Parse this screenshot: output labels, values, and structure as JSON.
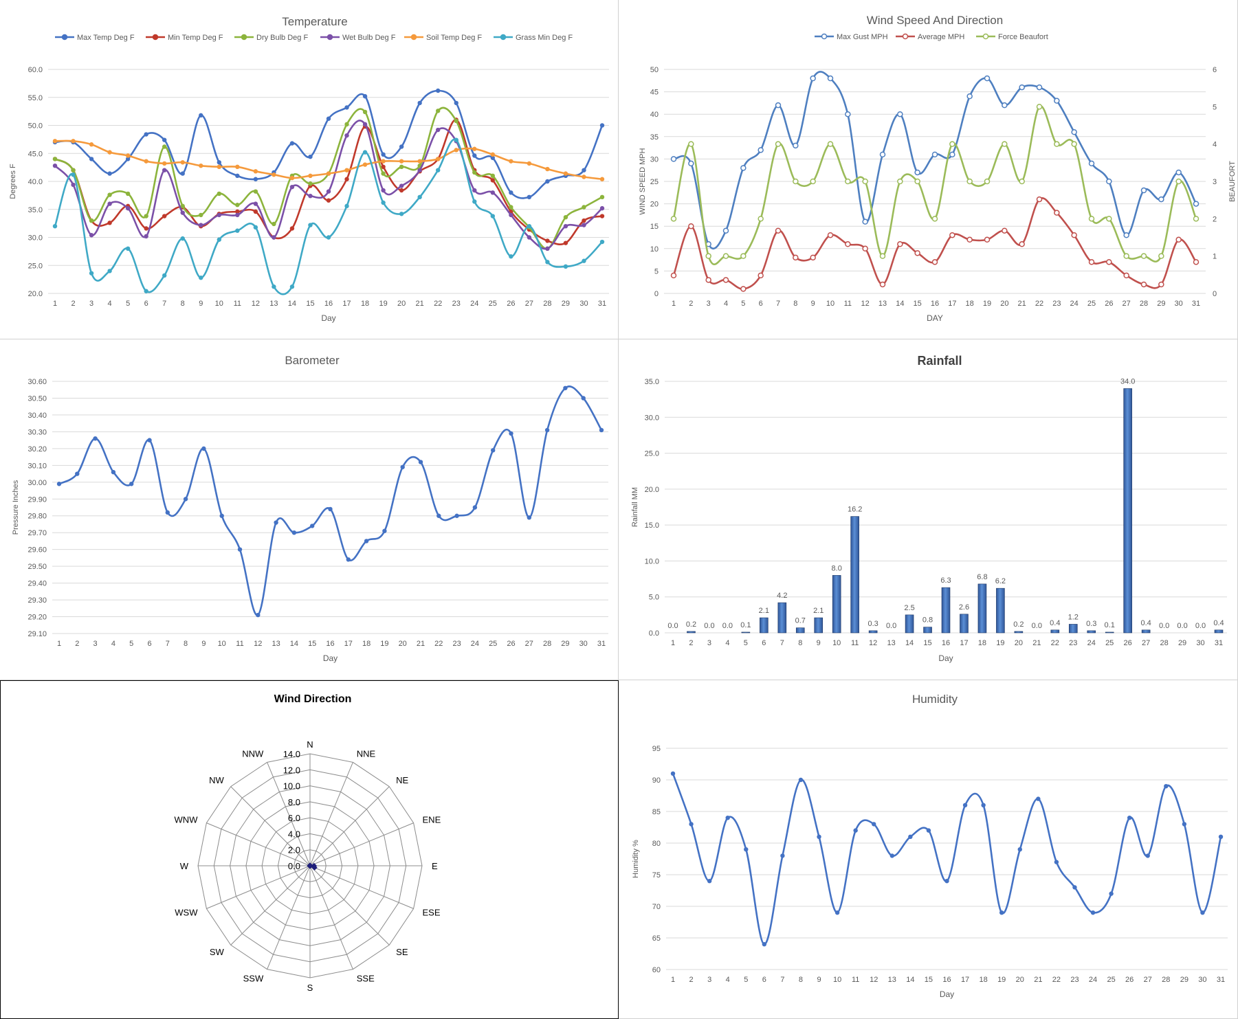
{
  "days": [
    "1",
    "2",
    "3",
    "4",
    "5",
    "6",
    "7",
    "8",
    "9",
    "10",
    "11",
    "12",
    "13",
    "14",
    "15",
    "16",
    "17",
    "18",
    "19",
    "20",
    "21",
    "22",
    "23",
    "24",
    "25",
    "26",
    "27",
    "28",
    "29",
    "30",
    "31"
  ],
  "chart_data": [
    {
      "id": "temperature",
      "type": "line",
      "title": "Temperature",
      "xlabel": "Day",
      "ylabel": "Degrees F",
      "ylim": [
        20,
        60
      ],
      "yticks": [
        "20.0",
        "25.0",
        "30.0",
        "35.0",
        "40.0",
        "45.0",
        "50.0",
        "55.0",
        "60.0"
      ],
      "grid": true,
      "legend": "top",
      "series": [
        {
          "name": "Max Temp Deg F",
          "color": "#4472c4",
          "values": [
            47,
            47,
            44,
            41.4,
            44,
            48.4,
            47.4,
            41.4,
            51.8,
            43.4,
            41,
            40.4,
            41.6,
            46.8,
            44.4,
            51.2,
            53.2,
            55.2,
            44.8,
            46.2,
            54,
            56.2,
            54,
            44.6,
            44.2,
            38,
            37.2,
            40,
            41,
            42,
            50
          ]
        },
        {
          "name": "Min Temp Deg F",
          "color": "#c0392b",
          "values": [
            44,
            42,
            33,
            32.6,
            35.6,
            31.6,
            33.8,
            35.4,
            32,
            34.2,
            34.6,
            34.6,
            30,
            31.6,
            39.2,
            36.6,
            40.4,
            49.8,
            42.6,
            38.4,
            41.8,
            44,
            51,
            42,
            40.2,
            34.6,
            31.4,
            29.4,
            29,
            33,
            33.8
          ]
        },
        {
          "name": "Dry Bulb Deg F",
          "color": "#8cb43c",
          "values": [
            44,
            42,
            33,
            37.6,
            37.8,
            33.8,
            46.2,
            35.6,
            34,
            37.8,
            35.8,
            38.2,
            32.4,
            41,
            39.6,
            41.4,
            50.2,
            52.4,
            41.4,
            42.6,
            42.8,
            52.6,
            50.8,
            41.6,
            41,
            35.4,
            31.8,
            28,
            33.6,
            35.4,
            37.2
          ]
        },
        {
          "name": "Wet Bulb Deg F",
          "color": "#7b50a8",
          "values": [
            42.8,
            39.4,
            30.4,
            36,
            35.2,
            30.2,
            42,
            34.4,
            32.2,
            34,
            34,
            36,
            30,
            39,
            37.4,
            38.2,
            48.2,
            50.2,
            38.4,
            39.2,
            42,
            49.2,
            47.2,
            38.4,
            38,
            34,
            30,
            28,
            32,
            32.2,
            35.2
          ]
        },
        {
          "name": "Soil Temp Deg F",
          "color": "#f59a3c",
          "values": [
            47.2,
            47.2,
            46.6,
            45.2,
            44.6,
            43.6,
            43.2,
            43.4,
            42.8,
            42.6,
            42.6,
            41.8,
            41.2,
            40.6,
            41,
            41.4,
            42,
            43,
            43.6,
            43.6,
            43.6,
            44,
            45.6,
            45.8,
            44.8,
            43.6,
            43.2,
            42.2,
            41.4,
            40.8,
            40.4
          ]
        },
        {
          "name": "Grass Min Deg F",
          "color": "#3fa9c6",
          "values": [
            32,
            41.2,
            23.6,
            24,
            28,
            20.4,
            23.2,
            29.8,
            22.8,
            29.6,
            31.2,
            31.8,
            21.2,
            21.2,
            32.2,
            30,
            35.6,
            45.2,
            36.2,
            34.2,
            37.2,
            42,
            47.4,
            36.4,
            33.8,
            26.6,
            32,
            25.6,
            24.8,
            25.8,
            29.2
          ]
        }
      ]
    },
    {
      "id": "wind",
      "type": "line",
      "title": "Wind Speed And Direction",
      "xlabel": "DAY",
      "ylabel": "WIND SPEED MPH",
      "y2label": "BEAUFORT",
      "ylim": [
        0,
        50
      ],
      "y2lim": [
        0,
        6
      ],
      "yticks": [
        "0",
        "5",
        "10",
        "15",
        "20",
        "25",
        "30",
        "35",
        "40",
        "45",
        "50"
      ],
      "y2ticks": [
        "0",
        "1",
        "2",
        "3",
        "4",
        "5",
        "6"
      ],
      "grid": true,
      "legend": "top",
      "series": [
        {
          "name": "Max Gust MPH",
          "color": "#4e7fc0",
          "axis": "left",
          "values": [
            30,
            29,
            11,
            14,
            28,
            32,
            42,
            33,
            48,
            48,
            40,
            16,
            31,
            40,
            27,
            31,
            31,
            44,
            48,
            42,
            46,
            46,
            43,
            36,
            29,
            25,
            13,
            23,
            21,
            27,
            20
          ]
        },
        {
          "name": "Average MPH",
          "color": "#c0504d",
          "axis": "left",
          "values": [
            4,
            15,
            3,
            3,
            1,
            4,
            14,
            8,
            8,
            13,
            11,
            10,
            2,
            11,
            9,
            7,
            13,
            12,
            12,
            14,
            11,
            21,
            18,
            13,
            7,
            7,
            4,
            2,
            2,
            12,
            7
          ]
        },
        {
          "name": "Force Beaufort",
          "color": "#9bbb59",
          "axis": "right",
          "values": [
            2,
            4,
            1,
            1,
            1,
            2,
            4,
            3,
            3,
            4,
            3,
            3,
            1,
            3,
            3,
            2,
            4,
            3,
            3,
            4,
            3,
            5,
            4,
            4,
            2,
            2,
            1,
            1,
            1,
            3,
            2
          ]
        }
      ]
    },
    {
      "id": "barometer",
      "type": "line",
      "title": "Barometer",
      "xlabel": "Day",
      "ylabel": "Pressure Inches",
      "ylim": [
        29.1,
        30.6
      ],
      "yticks": [
        "29.10",
        "29.20",
        "29.30",
        "29.40",
        "29.50",
        "29.60",
        "29.70",
        "29.80",
        "29.90",
        "30.00",
        "30.10",
        "30.20",
        "30.30",
        "30.40",
        "30.50",
        "30.60"
      ],
      "grid": true,
      "series": [
        {
          "name": "",
          "color": "#4472c4",
          "values": [
            29.99,
            30.05,
            30.26,
            30.06,
            29.99,
            30.25,
            29.82,
            29.9,
            30.2,
            29.8,
            29.6,
            29.21,
            29.76,
            29.7,
            29.74,
            29.84,
            29.54,
            29.65,
            29.71,
            30.09,
            30.12,
            29.8,
            29.8,
            29.85,
            30.19,
            30.29,
            29.79,
            30.31,
            30.56,
            30.5,
            30.31
          ]
        }
      ]
    },
    {
      "id": "rainfall",
      "type": "bar",
      "title": "Rainfall",
      "xlabel": "Day",
      "ylabel": "Rainfall MM",
      "ylim": [
        0,
        35
      ],
      "yticks": [
        "0.0",
        "5.0",
        "10.0",
        "15.0",
        "20.0",
        "25.0",
        "30.0",
        "35.0"
      ],
      "grid": true,
      "series": [
        {
          "name": "",
          "color": "#4472c4",
          "values": [
            0,
            0.2,
            0,
            0,
            0.1,
            2.1,
            4.2,
            0.7,
            2.1,
            8,
            16.2,
            0.3,
            0,
            2.5,
            0.8,
            6.3,
            2.6,
            6.8,
            6.2,
            0.2,
            0,
            0.4,
            1.2,
            0.3,
            0.1,
            34,
            0.4,
            0,
            0,
            0,
            0.4
          ]
        }
      ],
      "data_labels": [
        "0.0",
        "0.2",
        "0.0",
        "0.0",
        "0.1",
        "2.1",
        "4.2",
        "0.7",
        "2.1",
        "8.0",
        "16.2",
        "0.3",
        "0.0",
        "2.5",
        "0.8",
        "6.3",
        "2.6",
        "6.8",
        "6.2",
        "0.2",
        "0.0",
        "0.4",
        "1.2",
        "0.3",
        "0.1",
        "34.0",
        "0.4",
        "0.0",
        "0.0",
        "0.0",
        "0.4"
      ]
    },
    {
      "id": "wind_direction",
      "type": "radar",
      "title": "Wind Direction",
      "directions": [
        "N",
        "NNE",
        "NE",
        "ENE",
        "E",
        "ESE",
        "SE",
        "SSE",
        "S",
        "SSW",
        "SW",
        "WSW",
        "W",
        "WNW",
        "NW",
        "NNW"
      ],
      "rlim": [
        0,
        14
      ],
      "rticks": [
        "0.0",
        "2.0",
        "4.0",
        "6.0",
        "8.0",
        "10.0",
        "12.0",
        "14.0"
      ],
      "series": [
        {
          "name": "",
          "color": "#1f1f7a",
          "values": [
            0,
            0,
            0,
            0,
            0.5,
            0.6,
            0,
            0,
            0,
            0,
            0,
            0,
            0,
            0,
            0,
            0
          ]
        }
      ]
    },
    {
      "id": "humidity",
      "type": "line",
      "title": "Humidity",
      "xlabel": "Day",
      "ylabel": "Humidity %",
      "ylim": [
        60,
        95
      ],
      "yticks": [
        "60",
        "65",
        "70",
        "75",
        "80",
        "85",
        "90",
        "95"
      ],
      "grid": true,
      "series": [
        {
          "name": "",
          "color": "#4472c4",
          "values": [
            91,
            83,
            74,
            84,
            79,
            64,
            78,
            90,
            81,
            69,
            82,
            83,
            78,
            81,
            82,
            74,
            86,
            86,
            69,
            79,
            87,
            77,
            73,
            69,
            72,
            84,
            78,
            89,
            83,
            69,
            81
          ]
        }
      ]
    }
  ]
}
